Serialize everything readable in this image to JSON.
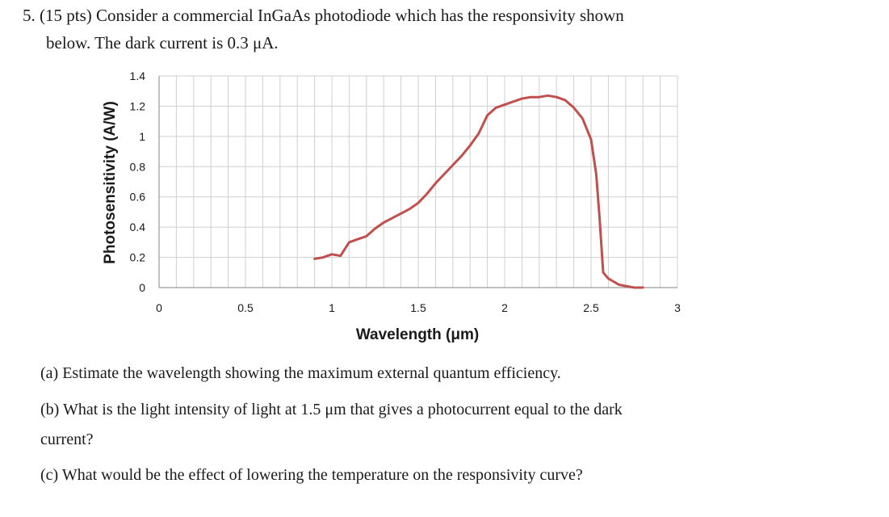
{
  "problem": {
    "line1": "5. (15 pts) Consider a commercial InGaAs photodiode which has the responsivity shown",
    "line2": "below. The dark current is 0.3 μA."
  },
  "questions": {
    "a": "(a) Estimate the wavelength showing the maximum external quantum efficiency.",
    "b_line1": "(b) What is the light intensity of light at 1.5 μm that gives a photocurrent equal to the dark",
    "b_line2": "current?",
    "c": "(c) What would be the effect of lowering the temperature on the responsivity curve?"
  },
  "chart_data": {
    "type": "line",
    "xlabel": "Wavelength (μm)",
    "ylabel": "Photosensitivity (A/W)",
    "xlim": [
      0,
      3
    ],
    "ylim": [
      0,
      1.4
    ],
    "xticks": [
      "0",
      "0.5",
      "1",
      "1.5",
      "2",
      "2.5",
      "3"
    ],
    "yticks": [
      "0",
      "0.2",
      "0.4",
      "0.6",
      "0.8",
      "1",
      "1.2",
      "1.4"
    ],
    "grid": true,
    "series_color": "#c0504d",
    "grid_color": "#cfcfcf",
    "series": [
      {
        "x": [
          0.9,
          0.95,
          1.0,
          1.05,
          1.1,
          1.15,
          1.2,
          1.25,
          1.3,
          1.35,
          1.4,
          1.45,
          1.5,
          1.55,
          1.6,
          1.65,
          1.7,
          1.75,
          1.8,
          1.85,
          1.9,
          1.95,
          2.0,
          2.05,
          2.1,
          2.15,
          2.2,
          2.25,
          2.3,
          2.35,
          2.4,
          2.45,
          2.5,
          2.53,
          2.55,
          2.57,
          2.6,
          2.63,
          2.66,
          2.7,
          2.75,
          2.8
        ],
        "y": [
          0.19,
          0.2,
          0.22,
          0.21,
          0.3,
          0.32,
          0.34,
          0.39,
          0.43,
          0.46,
          0.49,
          0.52,
          0.56,
          0.62,
          0.69,
          0.75,
          0.81,
          0.87,
          0.94,
          1.02,
          1.14,
          1.19,
          1.21,
          1.23,
          1.25,
          1.26,
          1.26,
          1.27,
          1.26,
          1.24,
          1.19,
          1.12,
          0.98,
          0.75,
          0.45,
          0.1,
          0.06,
          0.04,
          0.02,
          0.01,
          0.0,
          0.0
        ]
      }
    ]
  }
}
